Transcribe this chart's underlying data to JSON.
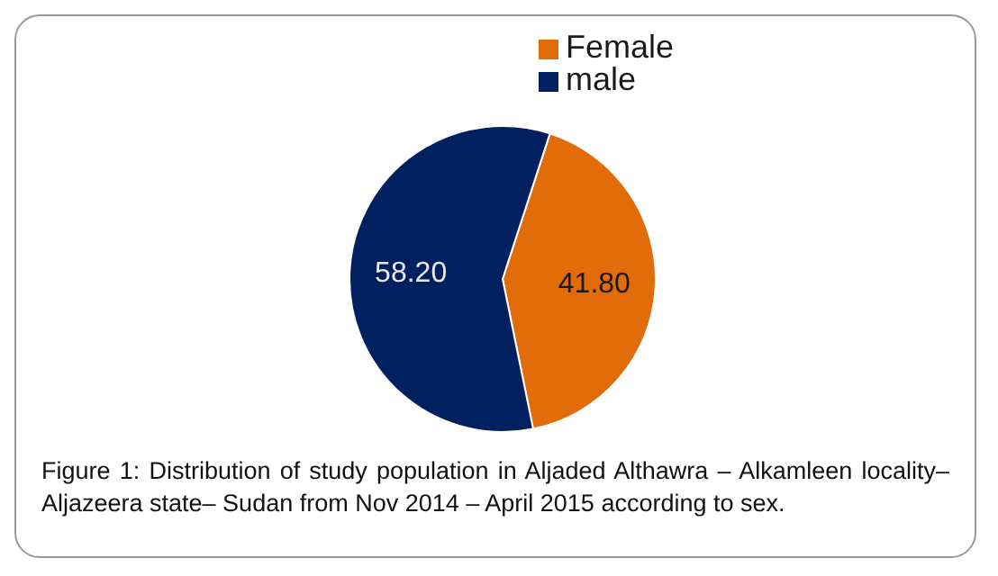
{
  "chart_data": {
    "type": "pie",
    "categories": [
      "Female",
      "male"
    ],
    "values": [
      41.8,
      58.2
    ],
    "colors": [
      "#e36c0a",
      "#002060"
    ],
    "value_labels": [
      "41.80",
      "58.20"
    ],
    "legend": "top",
    "annotations": [
      "Figure 1: Distribution of study population in Aljaded Althawra – Alkamleen locality–Aljazeera state– Sudan from Nov 2014 – April 2015 according to sex."
    ]
  }
}
